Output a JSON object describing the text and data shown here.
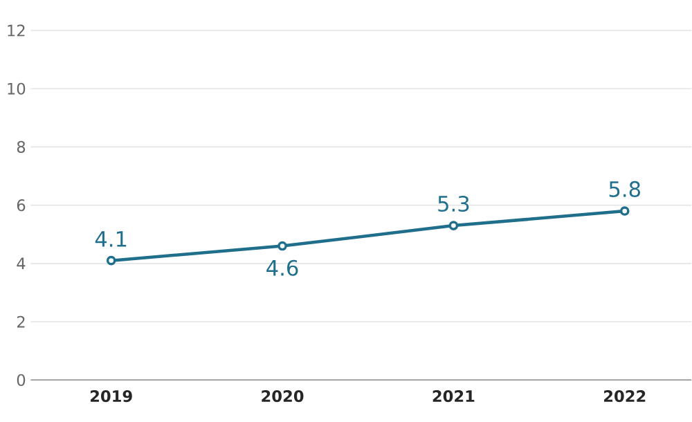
{
  "chart_data": {
    "type": "line",
    "categories": [
      "2019",
      "2020",
      "2021",
      "2022"
    ],
    "series": [
      {
        "color": "#1f6e8c",
        "values": [
          4.1,
          4.6,
          5.3,
          5.8
        ]
      }
    ],
    "ylim": [
      0,
      12
    ],
    "yticks": [
      0,
      2,
      4,
      6,
      8,
      10,
      12
    ],
    "grid": "y",
    "marker": "circle",
    "line_style": "solid",
    "data_labels": true
  }
}
